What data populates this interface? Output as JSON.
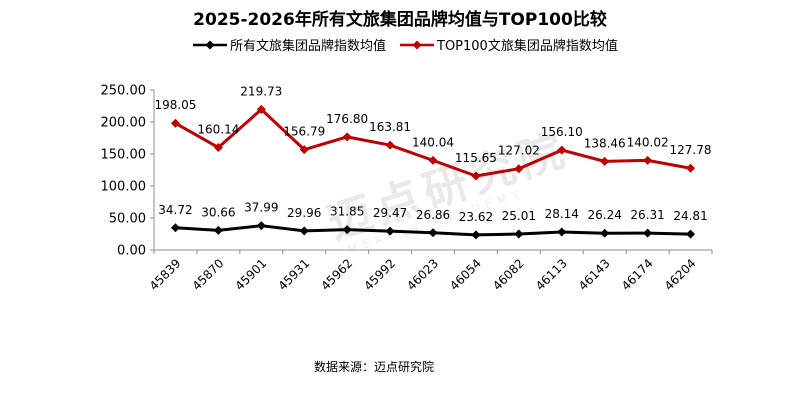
{
  "chart_data": {
    "type": "line",
    "title": "2025-2026年所有文旅集团品牌均值与TOP100比较",
    "categories": [
      "45839",
      "45870",
      "45901",
      "45931",
      "45962",
      "45992",
      "46023",
      "46054",
      "46082",
      "46113",
      "46143",
      "46174",
      "46204"
    ],
    "series": [
      {
        "name": "所有文旅集团品牌指数均值",
        "color": "#000000",
        "values": [
          34.72,
          30.66,
          37.99,
          29.96,
          31.85,
          29.47,
          26.86,
          23.62,
          25.01,
          28.14,
          26.24,
          26.31,
          24.81
        ],
        "labels": [
          "34.72",
          "30.66",
          "37.99",
          "29.96",
          "31.85",
          "29.47",
          "26.86",
          "23.62",
          "25.01",
          "28.14",
          "26.24",
          "26.31",
          "24.81"
        ]
      },
      {
        "name": "TOP100文旅集团品牌指数均值",
        "color": "#c00000",
        "values": [
          198.05,
          160.14,
          219.73,
          156.79,
          176.8,
          163.81,
          140.04,
          115.65,
          127.02,
          156.1,
          138.46,
          140.02,
          127.78
        ],
        "labels": [
          "198.05",
          "160.14",
          "219.73",
          "156.79",
          "176.80",
          "163.81",
          "140.04",
          "115.65",
          "127.02",
          "156.10",
          "138.46",
          "140.02",
          "127.78"
        ]
      }
    ],
    "yticks": [
      "0.00",
      "50.00",
      "100.00",
      "150.00",
      "200.00",
      "250.00"
    ],
    "ylim": [
      0,
      250
    ],
    "grid": false,
    "legend": "top",
    "source": "数据来源：迈点研究院"
  },
  "watermark": {
    "text": "迈点研究院",
    "sub": "MEADIN ACADEMY"
  }
}
